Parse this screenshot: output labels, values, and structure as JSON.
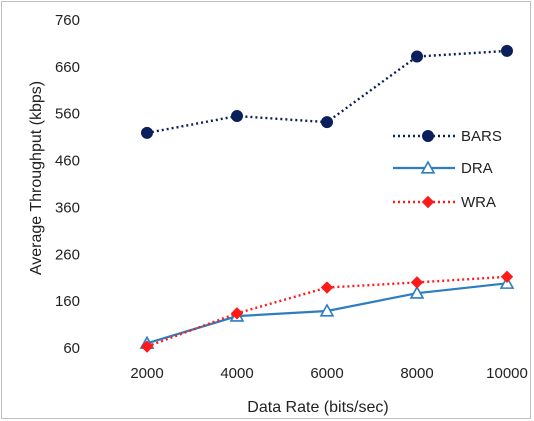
{
  "chart_data": {
    "type": "line",
    "title": "",
    "xlabel": "Data Rate (bits/sec)",
    "ylabel": "Average Throughput (kbps)",
    "x": [
      2000,
      4000,
      6000,
      8000,
      10000
    ],
    "xticks": [
      "2000",
      "4000",
      "6000",
      "8000",
      "10000"
    ],
    "yticks": [
      60,
      160,
      260,
      360,
      460,
      560,
      660,
      760
    ],
    "ylim": [
      60,
      760
    ],
    "grid": false,
    "legend_position": "right",
    "series": [
      {
        "name": "BARS",
        "values": [
          519,
          555,
          542,
          682,
          694
        ],
        "color": "#0b1f5c",
        "line_style": "dotted",
        "marker": "filled-circle"
      },
      {
        "name": "DRA",
        "values": [
          70,
          128,
          139,
          177,
          198
        ],
        "color": "#2e7dc1",
        "line_style": "solid",
        "marker": "open-triangle"
      },
      {
        "name": "WRA",
        "values": [
          63,
          134,
          189,
          200,
          212
        ],
        "color": "#ff1a1a",
        "line_style": "dotted",
        "marker": "filled-diamond"
      }
    ]
  }
}
